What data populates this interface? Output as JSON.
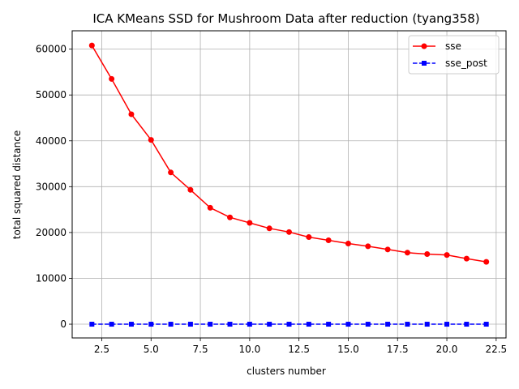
{
  "chart_data": {
    "type": "line",
    "title": "ICA KMeans SSD for Mushroom Data after reduction (tyang358)",
    "xlabel": "clusters number",
    "ylabel": "total squared distance",
    "xlim": [
      1.0,
      23.0
    ],
    "ylim": [
      -3000,
      64000
    ],
    "xticks": [
      2.5,
      5.0,
      7.5,
      10.0,
      12.5,
      15.0,
      17.5,
      20.0,
      22.5
    ],
    "xtick_labels": [
      "2.5",
      "5.0",
      "7.5",
      "10.0",
      "12.5",
      "15.0",
      "17.5",
      "20.0",
      "22.5"
    ],
    "yticks": [
      0,
      10000,
      20000,
      30000,
      40000,
      50000,
      60000
    ],
    "ytick_labels": [
      "0",
      "10000",
      "20000",
      "30000",
      "40000",
      "50000",
      "60000"
    ],
    "grid": true,
    "legend_position": "top-right",
    "x": [
      2,
      3,
      4,
      5,
      6,
      7,
      8,
      9,
      10,
      11,
      12,
      13,
      14,
      15,
      16,
      17,
      18,
      19,
      20,
      21,
      22
    ],
    "series": [
      {
        "name": "sse",
        "color": "#ff0000",
        "line": "solid",
        "marker": "circle",
        "values": [
          60800,
          53500,
          45800,
          40200,
          33100,
          29300,
          25400,
          23300,
          22100,
          20900,
          20100,
          19000,
          18300,
          17600,
          17000,
          16300,
          15600,
          15300,
          15100,
          14300,
          13600
        ]
      },
      {
        "name": "sse_post",
        "color": "#0000ff",
        "line": "dashed",
        "marker": "square",
        "values": [
          0,
          0,
          0,
          0,
          0,
          0,
          0,
          0,
          0,
          0,
          0,
          0,
          0,
          0,
          0,
          0,
          0,
          0,
          0,
          0,
          0
        ]
      }
    ]
  }
}
